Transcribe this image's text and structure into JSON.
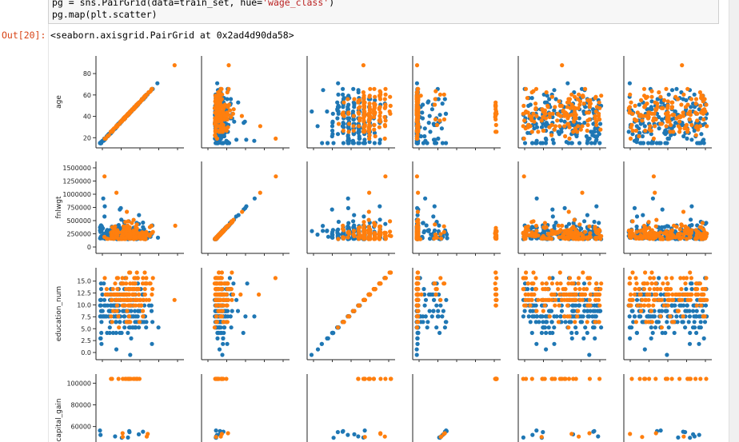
{
  "cell": {
    "code_lines": [
      {
        "pre": "pg = sns.PairGrid(data=train_set, hue=",
        "str": "'wage_class'",
        "post": ")"
      },
      {
        "pre": "pg.map(plt.scatter)",
        "str": "",
        "post": ""
      }
    ],
    "out_prompt": "Out[20]:",
    "out_text": "<seaborn.axisgrid.PairGrid at 0x2ad4d90da58>"
  },
  "colors": {
    "class_1": "#1f77b4",
    "class_2": "#ff7f0e"
  },
  "chart_data": {
    "type": "scatter",
    "variables": [
      "age",
      "fnlwgt",
      "education_num",
      "capital_gain"
    ],
    "ylabels": [
      "age",
      "fnlwgt",
      "education_num",
      "capital_gain"
    ],
    "y_ticks": [
      [
        "20",
        "40",
        "60",
        "80"
      ],
      [
        "0",
        "250000",
        "500000",
        "750000",
        "1000000",
        "1250000",
        "1500000"
      ],
      [
        "0.0",
        "2.5",
        "5.0",
        "7.5",
        "10.0",
        "12.5",
        "15.0"
      ],
      [
        "40000",
        "60000",
        "80000",
        "100000"
      ]
    ],
    "ranges": {
      "age": [
        17,
        90
      ],
      "fnlwgt": [
        12285,
        1484705
      ],
      "education_num": [
        1,
        16
      ],
      "capital_gain": [
        0,
        99999
      ]
    },
    "hue": "wage_class"
  }
}
